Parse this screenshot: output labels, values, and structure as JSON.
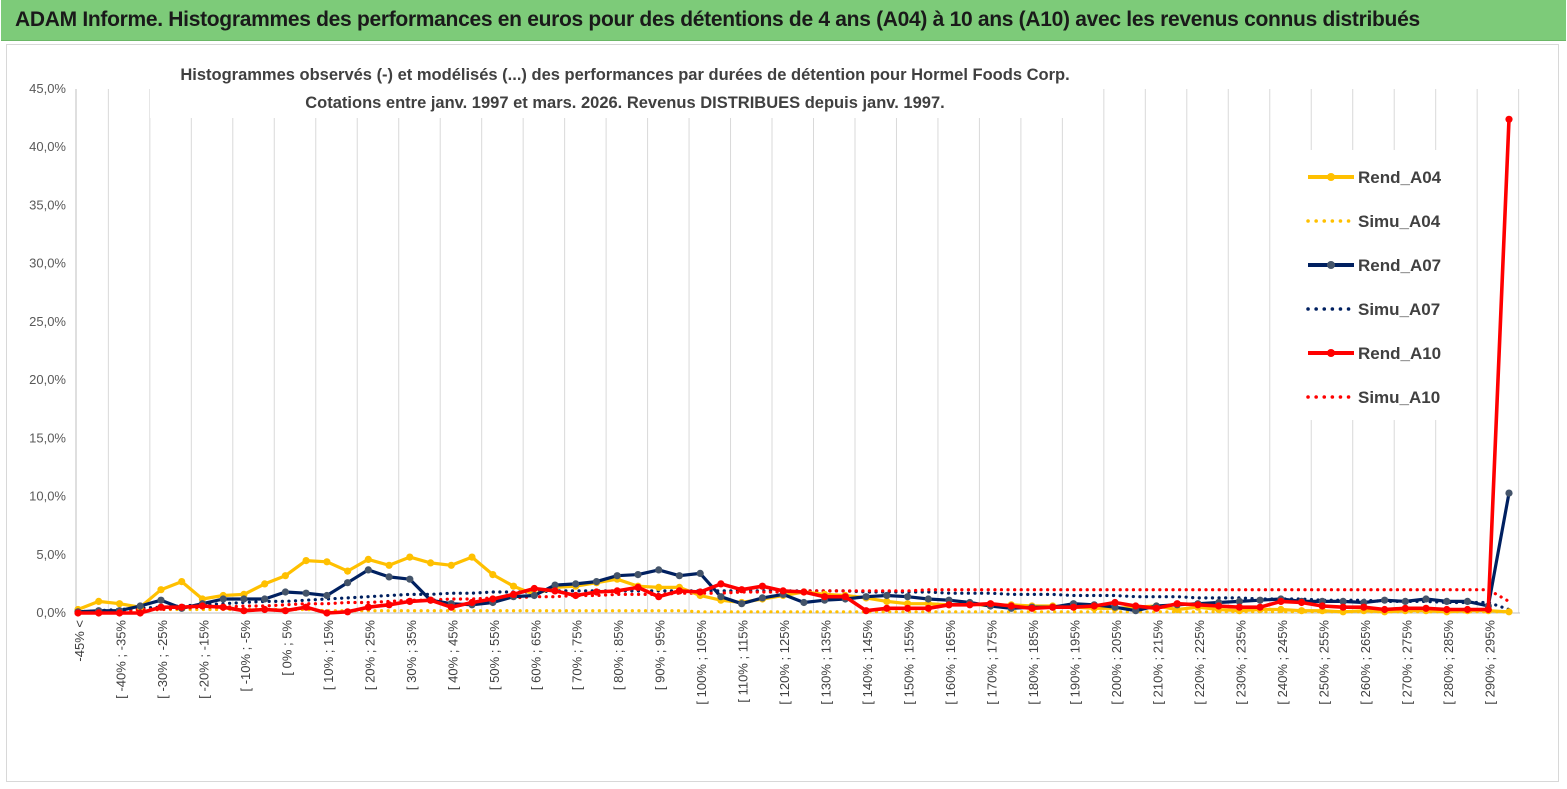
{
  "banner": {
    "title": "ADAM Informe. Histogrammes des performances en euros pour des détentions de 4 ans (A04) à 10 ans (A10) avec les revenus connus distribués"
  },
  "chart_data": {
    "type": "line",
    "title_line1": "Histogrammes observés (-) et modélisés (...) des performances par durées de détention pour Hormel Foods Corp.",
    "title_line2": "Cotations entre janv. 1997 et mars. 2026. Revenus DISTRIBUES depuis janv. 1997.",
    "ylim": [
      0,
      45
    ],
    "yticks": [
      "0,0%",
      "5,0%",
      "10,0%",
      "15,0%",
      "20,0%",
      "25,0%",
      "30,0%",
      "35,0%",
      "40,0%",
      "45,0%"
    ],
    "xtick_labels": [
      "-45% <",
      "[ -40% ; -35%",
      "[ -30% ; -25%",
      "[ -20% ; -15%",
      "[ -10% ; -5%",
      "[ 0% ; 5%",
      "[ 10% ; 15%",
      "[ 20% ; 25%",
      "[ 30% ; 35%",
      "[ 40% ; 45%",
      "[ 50% ; 55%",
      "[ 60% ; 65%",
      "[ 70% ; 75%",
      "[ 80% ; 85%",
      "[ 90% ; 95%",
      "[ 100% ; 105%",
      "[ 110% ; 115%",
      "[ 120% ; 125%",
      "[ 130% ; 135%",
      "[ 140% ; 145%",
      "[ 150% ; 155%",
      "[ 160% ; 165%",
      "[ 170% ; 175%",
      "[ 180% ; 185%",
      "[ 190% ; 195%",
      "[ 200% ; 205%",
      "[ 210% ; 215%",
      "[ 220% ; 225%",
      "[ 230% ; 235%",
      "[ 240% ; 245%",
      "[ 250% ; 255%",
      "[ 260% ; 265%",
      "[ 270% ; 275%",
      "[ 280% ; 285%",
      "[ 290% ; 295%"
    ],
    "num_bins": 70,
    "series": [
      {
        "name": "Rend_A04",
        "color": "#ffc000",
        "style": "solid",
        "values": [
          0.3,
          1.0,
          0.8,
          0.5,
          2.0,
          2.7,
          1.2,
          1.5,
          1.6,
          2.5,
          3.2,
          4.5,
          4.4,
          3.6,
          4.6,
          4.1,
          4.8,
          4.3,
          4.1,
          4.8,
          3.3,
          2.3,
          1.6,
          2.2,
          2.3,
          2.6,
          2.9,
          2.3,
          2.2,
          2.2,
          1.5,
          1.1,
          0.9,
          1.2,
          1.5,
          1.8,
          1.6,
          1.5,
          1.3,
          1.0,
          0.8,
          0.8,
          0.7,
          0.8,
          0.6,
          0.7,
          0.6,
          0.6,
          0.5,
          0.4,
          0.4,
          0.5,
          0.6,
          0.3,
          0.5,
          0.3,
          0.2,
          0.3,
          0.3,
          0.2,
          0.2,
          0.1,
          0.2,
          0.1,
          0.2,
          0.2,
          0.1,
          0.2,
          0.2,
          0.1
        ]
      },
      {
        "name": "Simu_A04",
        "color": "#ffc000",
        "style": "dotted",
        "values": [
          0.1,
          0.1,
          0.2,
          0.2,
          0.3,
          0.3,
          0.3,
          0.3,
          0.3,
          0.3,
          0.3,
          0.3,
          0.2,
          0.2,
          0.2,
          0.2,
          0.2,
          0.2,
          0.2,
          0.2,
          0.2,
          0.2,
          0.2,
          0.2,
          0.2,
          0.2,
          0.2,
          0.2,
          0.2,
          0.2,
          0.1,
          0.1,
          0.1,
          0.1,
          0.1,
          0.1,
          0.1,
          0.1,
          0.1,
          0.1,
          0.1,
          0.1,
          0.1,
          0.1,
          0.1,
          0.1,
          0.1,
          0.1,
          0.1,
          0.1,
          0.1,
          0.1,
          0.1,
          0.1,
          0.1,
          0.1,
          0.1,
          0.1,
          0.1,
          0.1,
          0.1,
          0.1,
          0.1,
          0.1,
          0.1,
          0.1,
          0.1,
          0.1,
          0.1,
          0.1
        ]
      },
      {
        "name": "Rend_A07",
        "color": "#002060",
        "style": "solid",
        "values": [
          0.1,
          0.2,
          0.2,
          0.6,
          1.1,
          0.4,
          0.8,
          1.2,
          1.2,
          1.2,
          1.8,
          1.7,
          1.5,
          2.6,
          3.7,
          3.1,
          2.9,
          1.1,
          0.8,
          0.7,
          0.9,
          1.4,
          1.5,
          2.4,
          2.5,
          2.7,
          3.2,
          3.3,
          3.7,
          3.2,
          3.4,
          1.4,
          0.8,
          1.3,
          1.6,
          0.9,
          1.1,
          1.2,
          1.4,
          1.5,
          1.4,
          1.2,
          1.1,
          0.9,
          0.6,
          0.4,
          0.5,
          0.5,
          0.8,
          0.7,
          0.5,
          0.2,
          0.6,
          0.7,
          0.8,
          0.9,
          1.0,
          1.1,
          1.2,
          1.0,
          1.0,
          1.0,
          0.9,
          1.1,
          1.0,
          1.2,
          1.0,
          1.0,
          0.6,
          10.3
        ]
      },
      {
        "name": "Simu_A07",
        "color": "#002060",
        "style": "dotted",
        "values": [
          0.1,
          0.2,
          0.3,
          0.4,
          0.5,
          0.6,
          0.7,
          0.8,
          0.9,
          1.0,
          1.0,
          1.1,
          1.2,
          1.3,
          1.4,
          1.5,
          1.6,
          1.6,
          1.7,
          1.7,
          1.8,
          1.8,
          1.8,
          1.9,
          1.9,
          1.9,
          1.9,
          1.9,
          1.9,
          1.9,
          1.9,
          1.9,
          1.9,
          1.9,
          1.9,
          1.9,
          1.9,
          1.9,
          1.8,
          1.8,
          1.8,
          1.8,
          1.7,
          1.7,
          1.7,
          1.6,
          1.6,
          1.6,
          1.5,
          1.5,
          1.5,
          1.4,
          1.4,
          1.4,
          1.3,
          1.3,
          1.3,
          1.2,
          1.2,
          1.2,
          1.1,
          1.1,
          1.1,
          1.0,
          1.0,
          1.0,
          0.9,
          0.9,
          0.9,
          0.3
        ]
      },
      {
        "name": "Rend_A10",
        "color": "#ff0000",
        "style": "solid",
        "values": [
          0.0,
          0.0,
          0.0,
          0.0,
          0.5,
          0.5,
          0.6,
          0.5,
          0.2,
          0.3,
          0.2,
          0.5,
          0.0,
          0.1,
          0.5,
          0.7,
          1.0,
          1.1,
          0.5,
          0.9,
          1.2,
          1.6,
          2.1,
          1.9,
          1.5,
          1.8,
          1.9,
          2.2,
          1.4,
          1.9,
          1.8,
          2.5,
          2.0,
          2.3,
          1.9,
          1.8,
          1.4,
          1.4,
          0.2,
          0.4,
          0.4,
          0.4,
          0.7,
          0.7,
          0.8,
          0.6,
          0.4,
          0.5,
          0.5,
          0.6,
          0.9,
          0.6,
          0.4,
          0.8,
          0.7,
          0.6,
          0.5,
          0.5,
          1.0,
          0.9,
          0.6,
          0.5,
          0.5,
          0.3,
          0.4,
          0.4,
          0.3,
          0.3,
          0.3,
          42.4
        ]
      },
      {
        "name": "Simu_A10",
        "color": "#ff0000",
        "style": "dotted",
        "values": [
          0.1,
          0.1,
          0.2,
          0.3,
          0.3,
          0.4,
          0.5,
          0.5,
          0.6,
          0.6,
          0.7,
          0.8,
          0.8,
          0.9,
          0.9,
          1.0,
          1.1,
          1.1,
          1.2,
          1.2,
          1.3,
          1.3,
          1.4,
          1.4,
          1.5,
          1.5,
          1.6,
          1.6,
          1.6,
          1.7,
          1.7,
          1.7,
          1.8,
          1.8,
          1.8,
          1.9,
          1.9,
          1.9,
          1.9,
          1.9,
          1.9,
          2.0,
          2.0,
          2.0,
          2.0,
          2.0,
          2.0,
          2.0,
          2.0,
          2.0,
          2.0,
          2.0,
          2.0,
          2.0,
          2.0,
          2.0,
          2.0,
          2.0,
          2.0,
          2.0,
          2.0,
          2.0,
          2.0,
          2.0,
          2.0,
          2.0,
          2.0,
          2.0,
          2.0,
          1.0
        ]
      }
    ],
    "legend_position": "right",
    "grid": "vertical"
  }
}
